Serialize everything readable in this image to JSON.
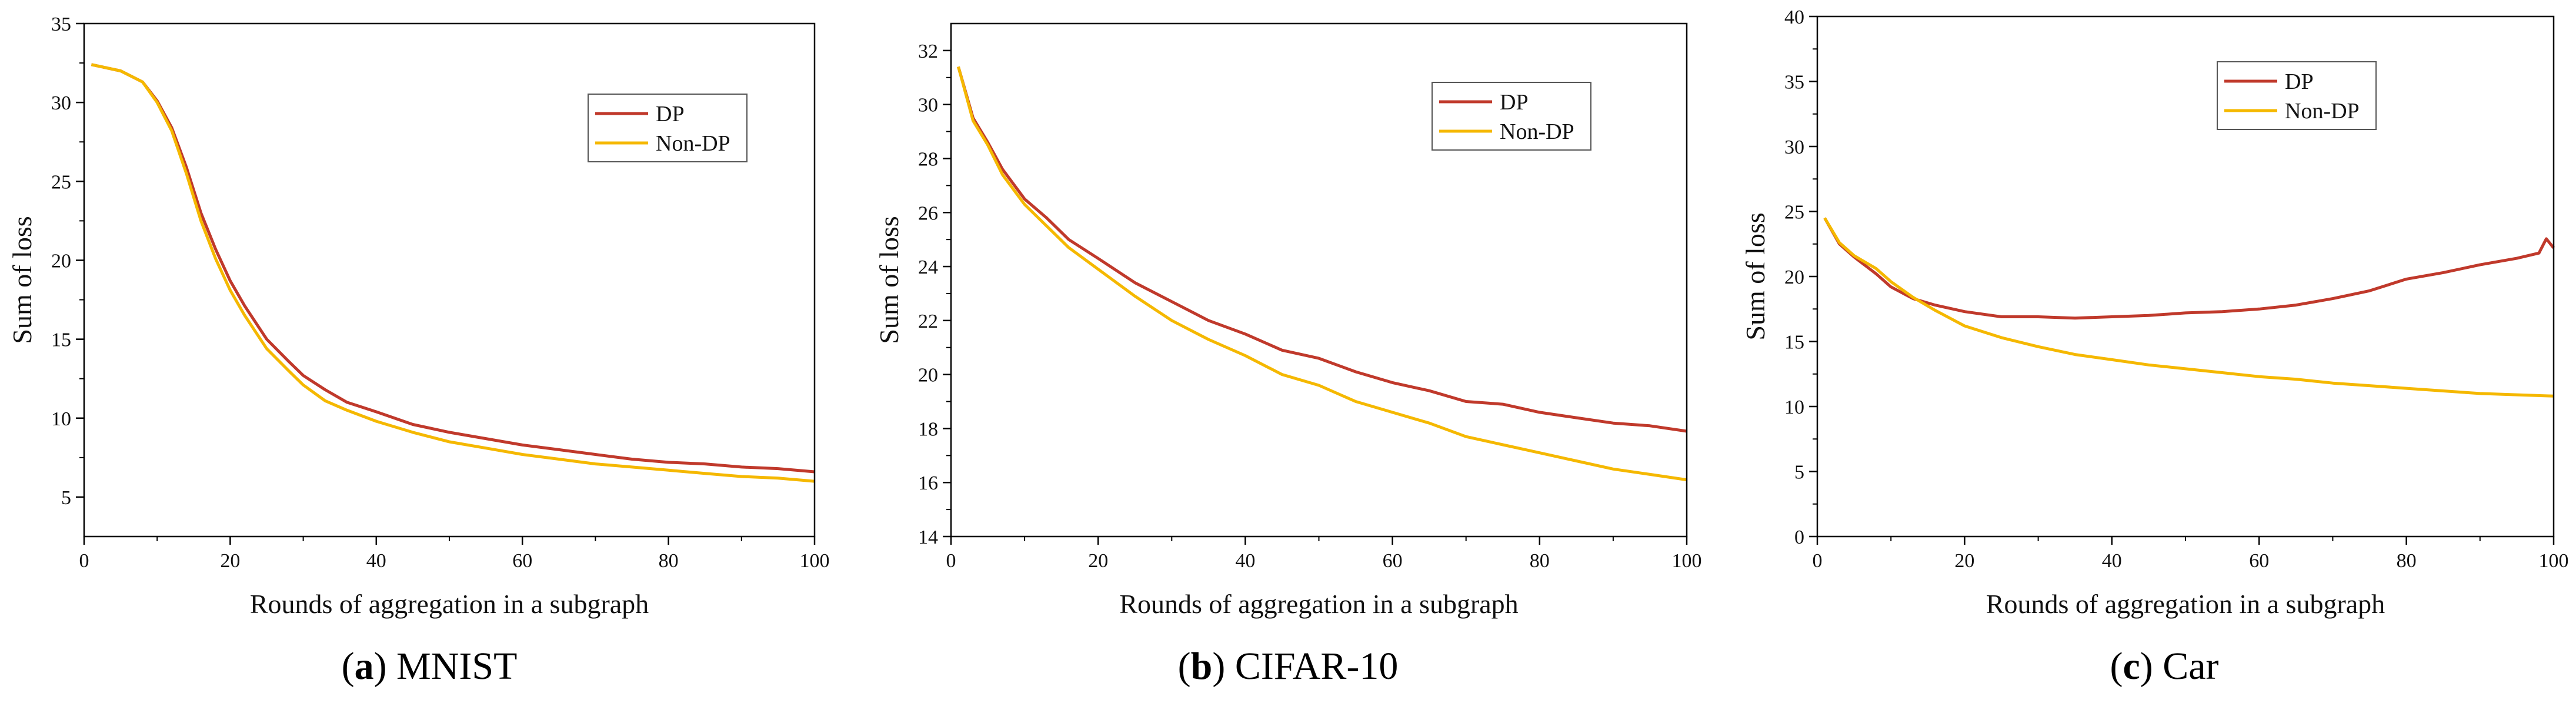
{
  "colors": {
    "dp": "#c0392b",
    "non_dp": "#f5b800",
    "axis": "#000000"
  },
  "chart_data": [
    {
      "type": "line",
      "caption_letter": "a",
      "caption_name": "MNIST",
      "xlabel": "Rounds of aggregation in a subgraph",
      "ylabel": "Sum of loss",
      "xlim": [
        0,
        100
      ],
      "ylim": [
        2.5,
        35
      ],
      "xticks": [
        0,
        20,
        40,
        60,
        80,
        100
      ],
      "yticks": [
        5,
        10,
        15,
        20,
        25,
        30,
        35
      ],
      "legend": [
        "DP",
        "Non-DP"
      ],
      "legend_position": "upper-right",
      "series": [
        {
          "name": "DP",
          "x": [
            1,
            5,
            8,
            10,
            12,
            14,
            16,
            18,
            20,
            22,
            25,
            28,
            30,
            33,
            36,
            40,
            45,
            50,
            55,
            60,
            65,
            70,
            75,
            80,
            85,
            90,
            95,
            100
          ],
          "y": [
            32.4,
            32.0,
            31.3,
            30.1,
            28.4,
            25.9,
            23.0,
            20.7,
            18.7,
            17.1,
            15.0,
            13.6,
            12.7,
            11.8,
            11.0,
            10.4,
            9.6,
            9.1,
            8.7,
            8.3,
            8.0,
            7.7,
            7.4,
            7.2,
            7.1,
            6.9,
            6.8,
            6.6
          ]
        },
        {
          "name": "Non-DP",
          "x": [
            1,
            5,
            8,
            10,
            12,
            14,
            16,
            18,
            20,
            22,
            25,
            28,
            30,
            33,
            36,
            40,
            45,
            50,
            55,
            60,
            65,
            70,
            75,
            80,
            85,
            90,
            95,
            100
          ],
          "y": [
            32.4,
            32.0,
            31.3,
            30.0,
            28.2,
            25.5,
            22.5,
            20.1,
            18.1,
            16.5,
            14.4,
            13.0,
            12.1,
            11.1,
            10.5,
            9.8,
            9.1,
            8.5,
            8.1,
            7.7,
            7.4,
            7.1,
            6.9,
            6.7,
            6.5,
            6.3,
            6.2,
            6.0
          ]
        }
      ]
    },
    {
      "type": "line",
      "caption_letter": "b",
      "caption_name": "CIFAR-10",
      "xlabel": "Rounds of aggregation in a subgraph",
      "ylabel": "Sum of loss",
      "xlim": [
        0,
        100
      ],
      "ylim": [
        14,
        33
      ],
      "xticks": [
        0,
        20,
        40,
        60,
        80,
        100
      ],
      "yticks": [
        14,
        16,
        18,
        20,
        22,
        24,
        26,
        28,
        30,
        32
      ],
      "legend": [
        "DP",
        "Non-DP"
      ],
      "legend_position": "upper-right",
      "series": [
        {
          "name": "DP",
          "x": [
            1,
            3,
            5,
            7,
            10,
            13,
            16,
            20,
            25,
            30,
            35,
            40,
            45,
            50,
            55,
            60,
            65,
            70,
            75,
            80,
            85,
            90,
            95,
            100
          ],
          "y": [
            31.4,
            29.5,
            28.6,
            27.6,
            26.5,
            25.8,
            25.0,
            24.3,
            23.4,
            22.7,
            22.0,
            21.5,
            20.9,
            20.6,
            20.1,
            19.7,
            19.4,
            19.0,
            18.9,
            18.6,
            18.4,
            18.2,
            18.1,
            17.9
          ]
        },
        {
          "name": "Non-DP",
          "x": [
            1,
            3,
            5,
            7,
            10,
            13,
            16,
            20,
            25,
            30,
            35,
            40,
            45,
            50,
            55,
            60,
            65,
            70,
            75,
            80,
            85,
            90,
            95,
            100
          ],
          "y": [
            31.4,
            29.4,
            28.5,
            27.4,
            26.3,
            25.5,
            24.7,
            23.9,
            22.9,
            22.0,
            21.3,
            20.7,
            20.0,
            19.6,
            19.0,
            18.6,
            18.2,
            17.7,
            17.4,
            17.1,
            16.8,
            16.5,
            16.3,
            16.1
          ]
        }
      ]
    },
    {
      "type": "line",
      "caption_letter": "c",
      "caption_name": "Car",
      "xlabel": "Rounds of aggregation in a subgraph",
      "ylabel": "Sum of loss",
      "xlim": [
        0,
        100
      ],
      "ylim": [
        0,
        40
      ],
      "xticks": [
        0,
        20,
        40,
        60,
        80,
        100
      ],
      "yticks": [
        0,
        5,
        10,
        15,
        20,
        25,
        30,
        35,
        40
      ],
      "legend": [
        "DP",
        "Non-DP"
      ],
      "legend_position": "upper-right",
      "series": [
        {
          "name": "DP",
          "x": [
            1,
            3,
            5,
            8,
            10,
            13,
            16,
            20,
            25,
            30,
            35,
            40,
            45,
            50,
            55,
            60,
            65,
            70,
            75,
            80,
            85,
            90,
            95,
            98,
            99,
            100
          ],
          "y": [
            24.5,
            22.5,
            21.5,
            20.2,
            19.2,
            18.3,
            17.8,
            17.3,
            16.9,
            16.9,
            16.8,
            16.9,
            17.0,
            17.2,
            17.3,
            17.5,
            17.8,
            18.3,
            18.9,
            19.8,
            20.3,
            20.9,
            21.4,
            21.8,
            22.9,
            22.2
          ]
        },
        {
          "name": "Non-DP",
          "x": [
            1,
            3,
            5,
            8,
            10,
            13,
            16,
            20,
            25,
            30,
            35,
            40,
            45,
            50,
            55,
            60,
            65,
            70,
            75,
            80,
            85,
            90,
            95,
            100
          ],
          "y": [
            24.5,
            22.6,
            21.6,
            20.6,
            19.6,
            18.4,
            17.4,
            16.2,
            15.3,
            14.6,
            14.0,
            13.6,
            13.2,
            12.9,
            12.6,
            12.3,
            12.1,
            11.8,
            11.6,
            11.4,
            11.2,
            11.0,
            10.9,
            10.8
          ]
        }
      ]
    }
  ]
}
